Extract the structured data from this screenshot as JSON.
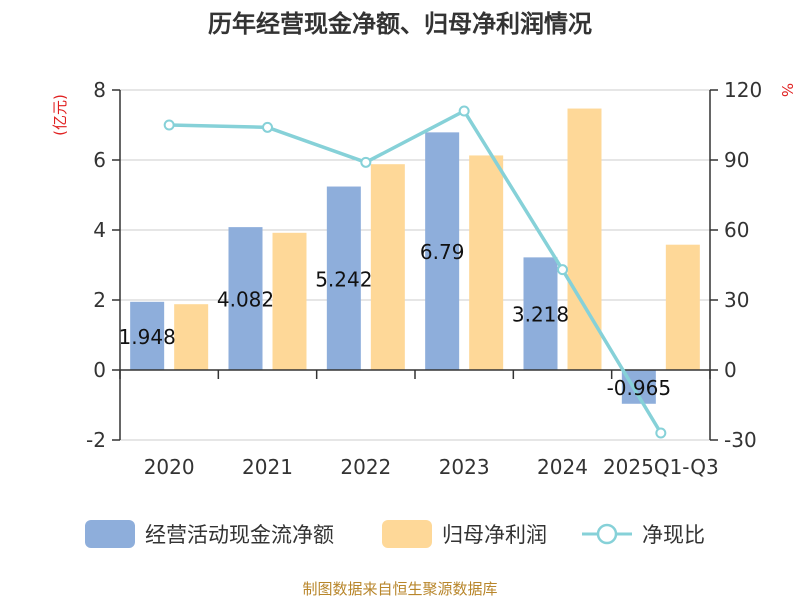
{
  "chart_data": {
    "type": "bar+line",
    "title": "历年经营现金净额、归母净利润情况",
    "categories": [
      "2020",
      "2021",
      "2022",
      "2023",
      "2024",
      "2025Q1-Q3"
    ],
    "series": [
      {
        "name": "经营活动现金流净额",
        "kind": "bar",
        "axis": "left",
        "color": "#8eaedb",
        "values": [
          1.948,
          4.082,
          5.242,
          6.79,
          3.218,
          -0.965
        ],
        "labels": [
          "1.948",
          "4.082",
          "5.242",
          "6.79",
          "3.218",
          "-0.965"
        ]
      },
      {
        "name": "归母净利润",
        "kind": "bar",
        "axis": "left",
        "color": "#fed898",
        "values": [
          1.88,
          3.92,
          5.88,
          6.13,
          7.47,
          3.58
        ]
      },
      {
        "name": "净现比",
        "kind": "line",
        "axis": "right",
        "color": "#86d1d8",
        "values": [
          105,
          104,
          89,
          111,
          43,
          -27
        ]
      }
    ],
    "left_axis": {
      "unit": "(亿元)",
      "min": -2,
      "max": 8,
      "ticks": [
        "-2",
        "0",
        "2",
        "4",
        "6",
        "8"
      ]
    },
    "right_axis": {
      "unit": "%",
      "min": -30,
      "max": 120,
      "ticks": [
        "-30",
        "0",
        "30",
        "60",
        "90",
        "120"
      ]
    },
    "legend_position": "bottom",
    "source": "制图数据来自恒生聚源数据库"
  }
}
